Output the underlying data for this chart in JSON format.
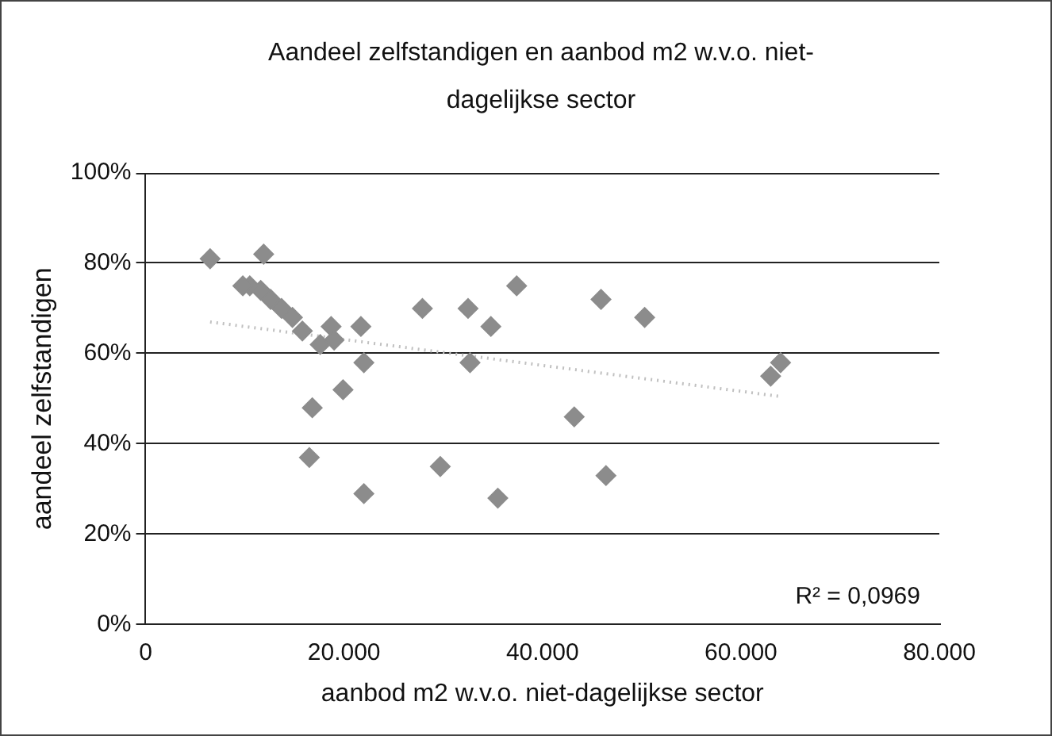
{
  "chart_data": {
    "type": "scatter",
    "title": "Aandeel zelfstandigen en aanbod m2 w.v.o. niet-dagelijkse sector",
    "xlabel": "aanbod m2 w.v.o. niet-dagelijkse sector",
    "ylabel": "aandeel zelfstandigen",
    "xlim": [
      0,
      80000
    ],
    "xticks": [
      0,
      {
        "value": 20000,
        "label": "20.000"
      },
      {
        "value": 40000,
        "label": "40.000"
      },
      {
        "value": 60000,
        "label": "60.000"
      },
      {
        "value": 80000,
        "label": "80.000"
      }
    ],
    "ylim": [
      0,
      100
    ],
    "yticks": [
      {
        "value": 0,
        "label": "0%"
      },
      {
        "value": 20,
        "label": "20%"
      },
      {
        "value": 40,
        "label": "40%"
      },
      {
        "value": 60,
        "label": "60%"
      },
      {
        "value": 80,
        "label": "80%"
      },
      {
        "value": 100,
        "label": "100%"
      }
    ],
    "grid": "y",
    "marker": "diamond",
    "annotations": [
      "R² = 0,0969"
    ],
    "series": [
      {
        "type": "scatter",
        "color": "#8c8c8c",
        "x": [
          35500,
          46400,
          22000,
          29700,
          16500,
          43200,
          16800,
          19900,
          22000,
          32700,
          64000,
          63000,
          50300,
          45900,
          37400,
          34800,
          32500,
          27900,
          21700,
          18700,
          17600,
          19000,
          15800,
          14800,
          13700,
          12600,
          11600,
          10500,
          9800,
          11900,
          6500
        ],
        "values": [
          28,
          33,
          29,
          35,
          37,
          46,
          48,
          52,
          58,
          58,
          58,
          55,
          68,
          72,
          75,
          66,
          70,
          70,
          66,
          66,
          62,
          63,
          65,
          68,
          70,
          72,
          74,
          75,
          75,
          82,
          81
        ]
      },
      {
        "type": "line",
        "color": "#c0c0c0",
        "line_style": "dotted",
        "marker": "none",
        "x": [
          6500,
          64000
        ],
        "values": [
          67,
          50.5
        ]
      }
    ]
  }
}
